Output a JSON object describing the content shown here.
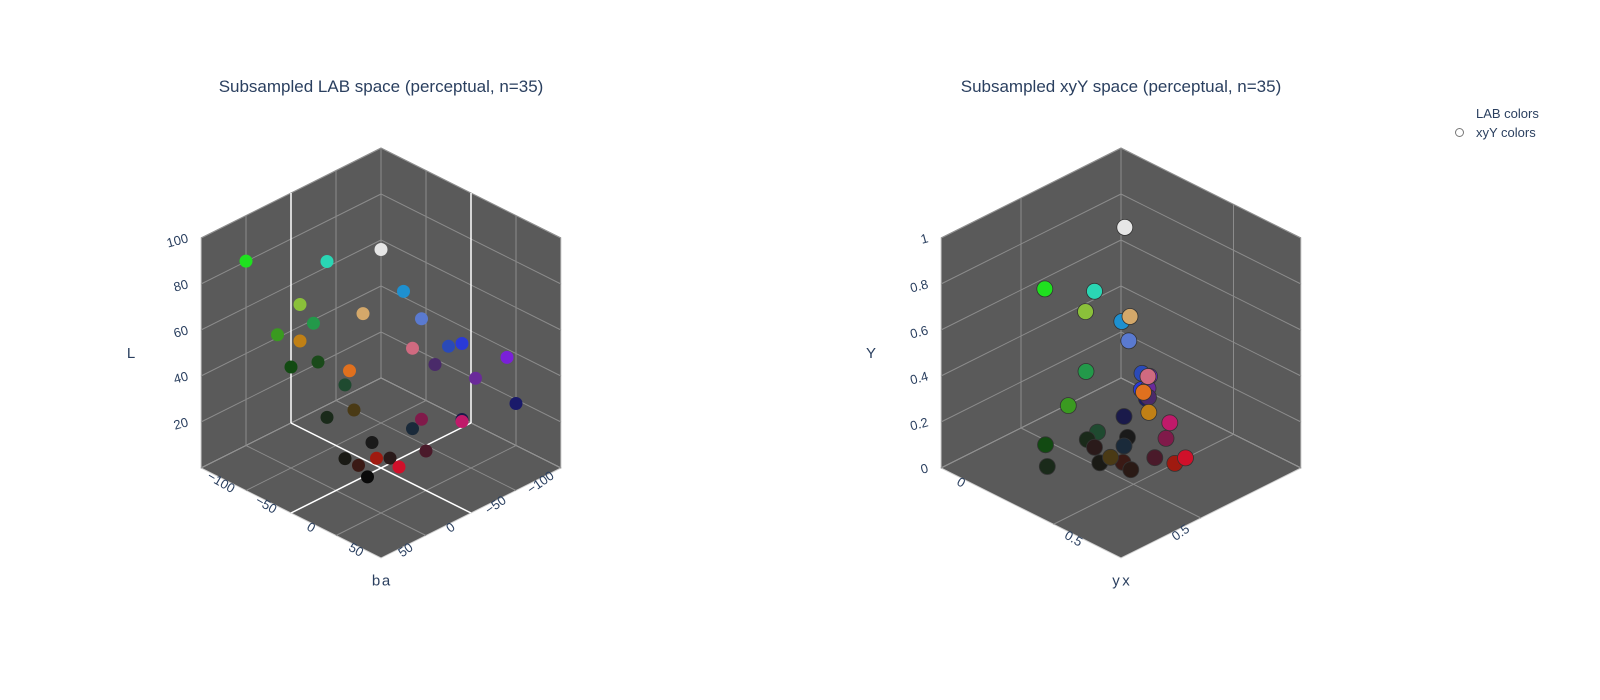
{
  "legend": {
    "items": [
      {
        "label": "LAB colors",
        "marker": false
      },
      {
        "label": "xyY colors",
        "marker": true
      }
    ]
  },
  "chart_data": [
    {
      "type": "scatter3d",
      "title": "Subsampled LAB space (perceptual, n=35)",
      "series_name": "LAB colors",
      "axes": {
        "x": {
          "label": "a",
          "range": [
            -100,
            100
          ],
          "ticks": [
            -100,
            -50,
            0,
            50
          ],
          "tick_labels": [
            "−100",
            "−50",
            "0",
            "50"
          ]
        },
        "y": {
          "label": "b",
          "range": [
            -100,
            100
          ],
          "ticks": [
            -100,
            -50,
            0,
            50
          ],
          "tick_labels": [
            "−100",
            "−50",
            "0",
            "50"
          ]
        },
        "z": {
          "label": "L",
          "range": [
            0,
            100
          ],
          "ticks": [
            20,
            40,
            60,
            80,
            100
          ],
          "tick_labels": [
            "20",
            "40",
            "60",
            "80",
            "100"
          ]
        }
      },
      "scene_background": "#5a5a5a",
      "points": [
        {
          "a": 0,
          "b": 0,
          "L": 95,
          "color": "#e6e6e6"
        },
        {
          "a": -55,
          "b": 5,
          "L": 80,
          "color": "#2ad6b4"
        },
        {
          "a": -80,
          "b": 70,
          "L": 88,
          "color": "#1fe01f"
        },
        {
          "a": -35,
          "b": 55,
          "L": 75,
          "color": "#8ac03a"
        },
        {
          "a": -45,
          "b": 30,
          "L": 60,
          "color": "#23994a"
        },
        {
          "a": 5,
          "b": 25,
          "L": 73,
          "color": "#d4a86a"
        },
        {
          "a": -10,
          "b": -35,
          "L": 68,
          "color": "#1e90d0"
        },
        {
          "a": 10,
          "b": -35,
          "L": 60,
          "color": "#5a7ad0"
        },
        {
          "a": 25,
          "b": -10,
          "L": 55,
          "color": "#d06a80"
        },
        {
          "a": -65,
          "b": 50,
          "L": 55,
          "color": "#3a9a20"
        },
        {
          "a": 15,
          "b": 50,
          "L": 55,
          "color": "#e0701e"
        },
        {
          "a": -20,
          "b": 70,
          "L": 65,
          "color": "#c08015"
        },
        {
          "a": -5,
          "b": 35,
          "L": 42,
          "color": "#1f4a30"
        },
        {
          "a": -25,
          "b": 45,
          "L": 50,
          "color": "#1a4a1a"
        },
        {
          "a": -60,
          "b": 40,
          "L": 40,
          "color": "#124a12"
        },
        {
          "a": 10,
          "b": 40,
          "L": 35,
          "color": "#4a3a15"
        },
        {
          "a": 60,
          "b": -30,
          "L": 60,
          "color": "#2a3ad8"
        },
        {
          "a": 30,
          "b": -45,
          "L": 50,
          "color": "#2a4ab8"
        },
        {
          "a": 80,
          "b": -60,
          "L": 52,
          "color": "#7a20d8"
        },
        {
          "a": 55,
          "b": -50,
          "L": 40,
          "color": "#6a2a9a"
        },
        {
          "a": 30,
          "b": -30,
          "L": 45,
          "color": "#4a2a6a"
        },
        {
          "a": 70,
          "b": -20,
          "L": 30,
          "color": "#c01a6a"
        },
        {
          "a": 45,
          "b": 0,
          "L": 30,
          "color": "#801a4a"
        },
        {
          "a": 80,
          "b": -70,
          "L": 30,
          "color": "#1a1a6a"
        },
        {
          "a": 55,
          "b": -35,
          "L": 25,
          "color": "#1a1a4a"
        },
        {
          "a": 30,
          "b": -5,
          "L": 22,
          "color": "#1a2a3a"
        },
        {
          "a": 5,
          "b": 15,
          "L": 15,
          "color": "#1a1a1a"
        },
        {
          "a": -30,
          "b": 30,
          "L": 22,
          "color": "#1a2a1a"
        },
        {
          "a": 70,
          "b": 20,
          "L": 25,
          "color": "#4a1a2a"
        },
        {
          "a": 60,
          "b": 40,
          "L": 20,
          "color": "#d0102a"
        },
        {
          "a": 40,
          "b": 30,
          "L": 18,
          "color": "#2a1a1a"
        },
        {
          "a": 25,
          "b": 30,
          "L": 15,
          "color": "#a01a10"
        },
        {
          "a": 5,
          "b": 30,
          "L": 8,
          "color": "#3a1a15"
        },
        {
          "a": -10,
          "b": 30,
          "L": 8,
          "color": "#1a1a15"
        },
        {
          "a": 10,
          "b": 25,
          "L": 3,
          "color": "#0a0a0a"
        }
      ]
    },
    {
      "type": "scatter3d",
      "title": "Subsampled xyY space (perceptual, n=35)",
      "series_name": "xyY colors",
      "axes": {
        "x": {
          "label": "x",
          "range": [
            0,
            0.8
          ],
          "ticks": [
            0,
            0.5
          ],
          "tick_labels": [
            "0",
            "0.5"
          ]
        },
        "y": {
          "label": "y",
          "range": [
            0,
            0.9
          ],
          "ticks": [
            0.5
          ],
          "tick_labels": [
            "0.5"
          ]
        },
        "z": {
          "label": "Y",
          "range": [
            0,
            1
          ],
          "ticks": [
            0,
            0.2,
            0.4,
            0.6,
            0.8,
            1
          ],
          "tick_labels": [
            "0",
            "0.2",
            "0.4",
            "0.6",
            "0.8",
            "1"
          ]
        }
      },
      "scene_background": "#5a5a5a",
      "points": [
        {
          "x": 0.31,
          "y": 0.33,
          "Y": 0.95,
          "color": "#e6e6e6"
        },
        {
          "x": 0.22,
          "y": 0.38,
          "Y": 0.65,
          "color": "#2ad6b4"
        },
        {
          "x": 0.26,
          "y": 0.47,
          "Y": 0.62,
          "color": "#8ac03a"
        },
        {
          "x": 0.36,
          "y": 0.36,
          "Y": 0.6,
          "color": "#d4a86a"
        },
        {
          "x": 0.15,
          "y": 0.55,
          "Y": 0.7,
          "color": "#1fe01f"
        },
        {
          "x": 0.19,
          "y": 0.21,
          "Y": 0.43,
          "color": "#1e90d0"
        },
        {
          "x": 0.23,
          "y": 0.22,
          "Y": 0.37,
          "color": "#5a7ad0"
        },
        {
          "x": 0.36,
          "y": 0.27,
          "Y": 0.3,
          "color": "#d06a80"
        },
        {
          "x": 0.2,
          "y": 0.4,
          "Y": 0.3,
          "color": "#23994a"
        },
        {
          "x": 0.21,
          "y": 0.5,
          "Y": 0.2,
          "color": "#3a9a20"
        },
        {
          "x": 0.47,
          "y": 0.39,
          "Y": 0.25,
          "color": "#c08015"
        },
        {
          "x": 0.42,
          "y": 0.36,
          "Y": 0.3,
          "color": "#e0701e"
        },
        {
          "x": 0.25,
          "y": 0.18,
          "Y": 0.15,
          "color": "#2a3ad8"
        },
        {
          "x": 0.2,
          "y": 0.12,
          "Y": 0.17,
          "color": "#2a4ab8"
        },
        {
          "x": 0.26,
          "y": 0.15,
          "Y": 0.2,
          "color": "#7a20d8"
        },
        {
          "x": 0.28,
          "y": 0.18,
          "Y": 0.17,
          "color": "#6a2a9a"
        },
        {
          "x": 0.3,
          "y": 0.2,
          "Y": 0.15,
          "color": "#4a2a6a"
        },
        {
          "x": 0.43,
          "y": 0.24,
          "Y": 0.12,
          "color": "#c01a6a"
        },
        {
          "x": 0.44,
          "y": 0.27,
          "Y": 0.07,
          "color": "#801a4a"
        },
        {
          "x": 0.22,
          "y": 0.12,
          "Y": 0.07,
          "color": "#1a1a6a"
        },
        {
          "x": 0.28,
          "y": 0.3,
          "Y": 0.1,
          "color": "#1a1a4a"
        },
        {
          "x": 0.36,
          "y": 0.39,
          "Y": 0.05,
          "color": "#1a2a3a"
        },
        {
          "x": 0.26,
          "y": 0.41,
          "Y": 0.07,
          "color": "#1f4a30"
        },
        {
          "x": 0.25,
          "y": 0.45,
          "Y": 0.05,
          "color": "#1a2a1a"
        },
        {
          "x": 0.18,
          "y": 0.58,
          "Y": 0.05,
          "color": "#124a12"
        },
        {
          "x": 0.58,
          "y": 0.33,
          "Y": 0.08,
          "color": "#d0102a"
        },
        {
          "x": 0.55,
          "y": 0.35,
          "Y": 0.05,
          "color": "#a01a10"
        },
        {
          "x": 0.47,
          "y": 0.36,
          "Y": 0.04,
          "color": "#4a1a2a"
        },
        {
          "x": 0.4,
          "y": 0.44,
          "Y": 0.02,
          "color": "#3a1a15"
        },
        {
          "x": 0.34,
          "y": 0.35,
          "Y": 0.06,
          "color": "#1a1a1a"
        },
        {
          "x": 0.3,
          "y": 0.47,
          "Y": 0.05,
          "color": "#2a1a1a"
        },
        {
          "x": 0.38,
          "y": 0.48,
          "Y": 0.05,
          "color": "#4a3a15"
        },
        {
          "x": 0.47,
          "y": 0.48,
          "Y": 0.04,
          "color": "#2a1a15"
        },
        {
          "x": 0.35,
          "y": 0.5,
          "Y": 0.02,
          "color": "#1a1a15"
        },
        {
          "x": 0.25,
          "y": 0.65,
          "Y": 0.02,
          "color": "#1a2a1a"
        }
      ]
    }
  ]
}
